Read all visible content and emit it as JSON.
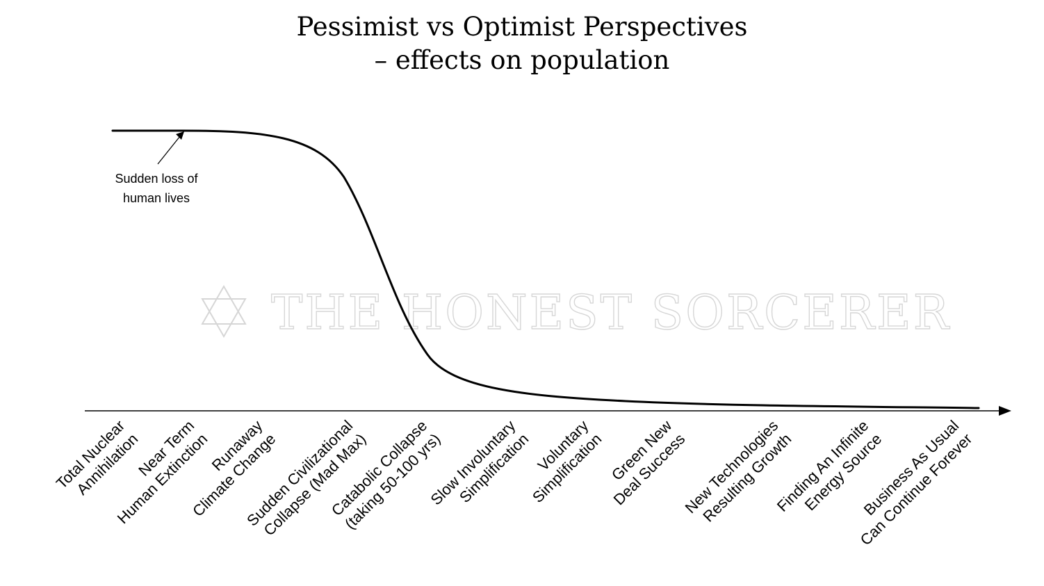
{
  "title": {
    "line1": "Pessimist vs Optimist Perspectives",
    "line2": "– effects on population"
  },
  "annotation": {
    "line1": "Sudden loss of",
    "line2": "human lives"
  },
  "watermark": {
    "text": "THE HONEST SORCERER",
    "icon": "star-of-david-icon",
    "color": "#d6d6d6"
  },
  "categories": [
    {
      "line1": "Total Nuclear",
      "line2": "Annihilation"
    },
    {
      "line1": "Near Term",
      "line2": "Human Extinction"
    },
    {
      "line1": "Runaway",
      "line2": "Climate Change"
    },
    {
      "line1": "Sudden Civilizational",
      "line2": "Collapse (Mad Max)"
    },
    {
      "line1": "Catabolic Collapse",
      "line2": "(taking 50-100 yrs)"
    },
    {
      "line1": "Slow Involuntary",
      "line2": "Simplification"
    },
    {
      "line1": "Voluntary",
      "line2": "Simplification"
    },
    {
      "line1": "Green New",
      "line2": "Deal Success"
    },
    {
      "line1": "New Technologies",
      "line2": "Resulting Growth"
    },
    {
      "line1": "Finding An Infinite",
      "line2": "Energy Source"
    },
    {
      "line1": "Business As Usual",
      "line2": "Can Continue Forever"
    }
  ],
  "colors": {
    "line": "#000000",
    "background": "#ffffff"
  }
}
